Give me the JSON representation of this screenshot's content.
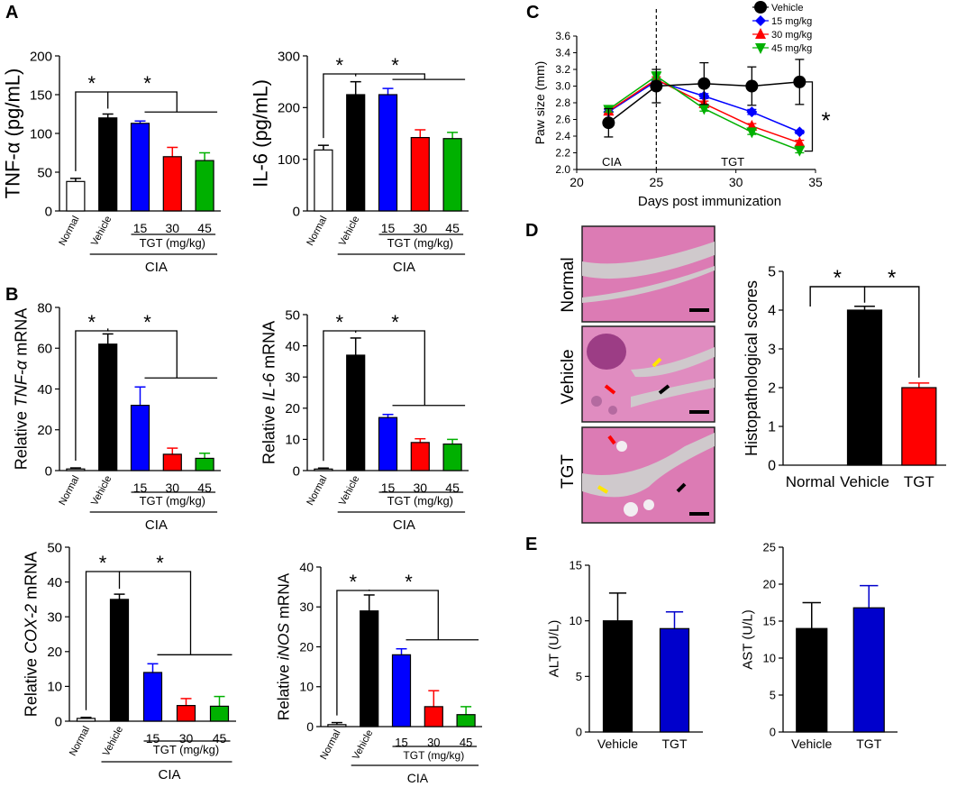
{
  "panel_labels": {
    "A": "A",
    "B": "B",
    "C": "C",
    "D": "D",
    "E": "E"
  },
  "colors": {
    "normal": "#ffffff",
    "vehicle": "#000000",
    "d15": "#0000ff",
    "d30": "#ff0000",
    "d45": "#00b000",
    "tgt": "#0000cc",
    "tissue": "#d86aa8",
    "tissue_light": "#e9a3cc",
    "cartilage": "#c9c2c6",
    "marrow": "#f4f0f4"
  },
  "chart_data": [
    {
      "id": "tnf",
      "type": "bar",
      "ylabel": "TNF-α (pg/mL)",
      "ylim": [
        0,
        200
      ],
      "yticks": [
        "0",
        "50",
        "100",
        "150",
        "200"
      ],
      "categories": [
        "Normal",
        "Vehicle",
        "15",
        "30",
        "45"
      ],
      "values": [
        38,
        120,
        113,
        70,
        65
      ],
      "errors": [
        4,
        5,
        3,
        12,
        10
      ],
      "group_label": "TGT (mg/kg)",
      "cia_label": "CIA",
      "sig": [
        "*",
        "*"
      ]
    },
    {
      "id": "il6",
      "type": "bar",
      "ylabel": "IL-6 (pg/mL)",
      "ylim": [
        0,
        300
      ],
      "yticks": [
        "0",
        "100",
        "200",
        "300"
      ],
      "categories": [
        "Normal",
        "Vehicle",
        "15",
        "30",
        "45"
      ],
      "values": [
        118,
        225,
        225,
        142,
        140
      ],
      "errors": [
        9,
        25,
        12,
        15,
        12
      ],
      "group_label": "TGT (mg/kg)",
      "cia_label": "CIA",
      "sig": [
        "*",
        "*"
      ]
    },
    {
      "id": "tnf_mrna",
      "type": "bar",
      "ylabel_prefix": "Relative ",
      "ylabel_gene": "TNF-α",
      "ylabel_suffix": " mRNA",
      "ylim": [
        0,
        80
      ],
      "yticks": [
        "0",
        "20",
        "40",
        "60",
        "80"
      ],
      "categories": [
        "Normal",
        "Vehicle",
        "15",
        "30",
        "45"
      ],
      "values": [
        0.8,
        62,
        32,
        8,
        6
      ],
      "errors": [
        0.5,
        5,
        9,
        3,
        2.5
      ],
      "group_label": "TGT (mg/kg)",
      "cia_label": "CIA",
      "sig": [
        "*",
        "*"
      ]
    },
    {
      "id": "il6_mrna",
      "type": "bar",
      "ylabel_prefix": "Relative ",
      "ylabel_gene": "IL-6",
      "ylabel_suffix": " mRNA",
      "ylim": [
        0,
        50
      ],
      "yticks": [
        "0",
        "10",
        "20",
        "30",
        "40",
        "50"
      ],
      "categories": [
        "Normal",
        "Vehicle",
        "15",
        "30",
        "45"
      ],
      "values": [
        0.5,
        37,
        17,
        9,
        8.5
      ],
      "errors": [
        0.3,
        5.5,
        1,
        1.2,
        1.5
      ],
      "group_label": "TGT (mg/kg)",
      "cia_label": "CIA",
      "sig": [
        "*",
        "*"
      ]
    },
    {
      "id": "cox2_mrna",
      "type": "bar",
      "ylabel_prefix": "Relative ",
      "ylabel_gene": "COX-2",
      "ylabel_suffix": " mRNA",
      "ylim": [
        0,
        50
      ],
      "yticks": [
        "0",
        "10",
        "20",
        "30",
        "40",
        "50"
      ],
      "categories": [
        "Normal",
        "Vehicle",
        "15",
        "30",
        "45"
      ],
      "values": [
        0.8,
        35,
        14,
        4.5,
        4.3
      ],
      "errors": [
        0.3,
        1.5,
        2.5,
        2,
        2.8
      ],
      "group_label": "TGT (mg/kg)",
      "cia_label": "CIA",
      "sig": [
        "*",
        "*"
      ]
    },
    {
      "id": "inos_mrna",
      "type": "bar",
      "ylabel_prefix": "Relative ",
      "ylabel_gene": "iNOS",
      "ylabel_suffix": " mRNA",
      "ylim": [
        0,
        40
      ],
      "yticks": [
        "0",
        "10",
        "20",
        "30",
        "40"
      ],
      "categories": [
        "Normal",
        "Vehicle",
        "15",
        "30",
        "45"
      ],
      "values": [
        0.5,
        29,
        18,
        5,
        3
      ],
      "errors": [
        0.5,
        4,
        1.5,
        4,
        2
      ],
      "group_label": "TGT (mg/kg)",
      "cia_label": "CIA",
      "sig": [
        "*",
        "*"
      ]
    },
    {
      "id": "paw",
      "type": "line",
      "ylabel": "Paw size (mm)",
      "xlabel": "Days post immunization",
      "xlim": [
        20,
        35
      ],
      "ylim": [
        2.0,
        3.6
      ],
      "xticks": [
        "20",
        "25",
        "30",
        "35"
      ],
      "yticks": [
        "2.0",
        "2.2",
        "2.4",
        "2.6",
        "2.8",
        "3.0",
        "3.2",
        "3.4",
        "3.6"
      ],
      "x": [
        22,
        25,
        28,
        31,
        34
      ],
      "series": [
        {
          "name": "Vehicle",
          "marker": "circle",
          "values": [
            2.56,
            3.0,
            3.03,
            3.0,
            3.05
          ],
          "errors": [
            0.17,
            0.2,
            0.25,
            0.23,
            0.27
          ]
        },
        {
          "name": "15 mg/kg",
          "marker": "diamond",
          "values": [
            2.69,
            3.06,
            2.88,
            2.69,
            2.45
          ],
          "errors": [
            0.03,
            0.03,
            0.03,
            0.03,
            0.02
          ]
        },
        {
          "name": "30 mg/kg",
          "marker": "triangle-up",
          "values": [
            2.7,
            3.08,
            2.79,
            2.52,
            2.32
          ],
          "errors": [
            0.03,
            0.03,
            0.03,
            0.03,
            0.03
          ]
        },
        {
          "name": "45 mg/kg",
          "marker": "triangle-down",
          "values": [
            2.72,
            3.12,
            2.73,
            2.45,
            2.23
          ],
          "errors": [
            0.03,
            0.05,
            0.03,
            0.03,
            0.03
          ]
        }
      ],
      "annotations": {
        "cia": "CIA",
        "tgt": "TGT",
        "sig": "*"
      }
    },
    {
      "id": "histo",
      "type": "bar",
      "ylabel": "Histopathological scores",
      "ylim": [
        0,
        5
      ],
      "yticks": [
        "0",
        "1",
        "2",
        "3",
        "4",
        "5"
      ],
      "categories": [
        "Normal",
        "Vehicle",
        "TGT"
      ],
      "values": [
        0,
        4.0,
        2.0
      ],
      "errors": [
        0,
        0.1,
        0.12
      ],
      "sig": [
        "*",
        "*"
      ]
    },
    {
      "id": "alt",
      "type": "bar",
      "ylabel": "ALT (U/L)",
      "ylim": [
        0,
        15
      ],
      "yticks": [
        "0",
        "5",
        "10",
        "15"
      ],
      "categories": [
        "Vehicle",
        "TGT"
      ],
      "values": [
        10,
        9.3
      ],
      "errors": [
        2.5,
        1.5
      ]
    },
    {
      "id": "ast",
      "type": "bar",
      "ylabel": "AST (U/L)",
      "ylim": [
        0,
        25
      ],
      "yticks": [
        "0",
        "5",
        "10",
        "15",
        "20",
        "25"
      ],
      "categories": [
        "Vehicle",
        "TGT"
      ],
      "values": [
        14,
        16.8
      ],
      "errors": [
        3.5,
        3
      ]
    }
  ],
  "histology": {
    "row_labels": [
      "Normal",
      "Vehicle",
      "TGT"
    ]
  }
}
